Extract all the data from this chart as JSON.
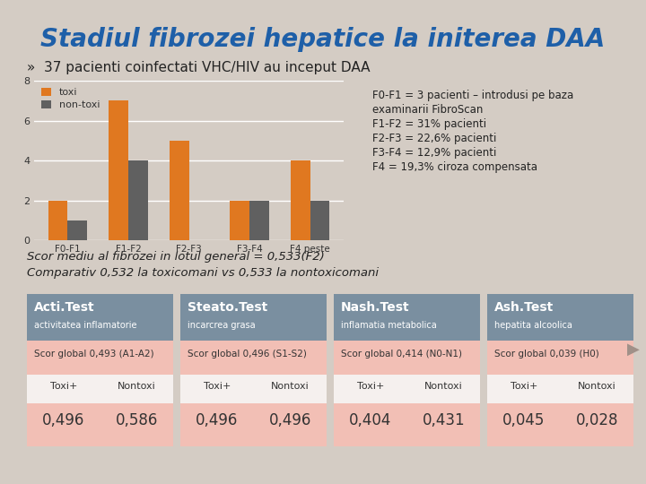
{
  "title": "Stadiul fibrozei hepatice la initerea DAA",
  "subtitle": "»  37 pacienti coinfectati VHC/HIV au inceput DAA",
  "bg_color": "#d4ccc4",
  "title_color": "#1e5fa8",
  "categories": [
    "F0-F1",
    "F1-F2",
    "F2-F3",
    "F3-F4",
    "F4 peste"
  ],
  "toxi": [
    2,
    7,
    5,
    2,
    4
  ],
  "non_toxi": [
    1,
    4,
    0,
    2,
    2
  ],
  "toxi_color": "#e07820",
  "non_toxi_color": "#606060",
  "ylim": [
    0,
    8
  ],
  "yticks": [
    0,
    2,
    4,
    6,
    8
  ],
  "legend_toxi": "toxi",
  "legend_non_toxi": "non-toxi",
  "annotation_lines": [
    "F0-F1 = 3 pacienti – introdusi pe baza",
    "examinarii FibroScan",
    "F1-F2 = 31% pacienti",
    "F2-F3 = 22,6% pacienti",
    "F3-F4 = 12,9% pacienti",
    "F4 = 19,3% ciroza compensata"
  ],
  "scor_line1": "Scor mediu al fibrozei in lotul general = 0,533(F2)",
  "scor_line2": "Comparativ 0,532 la toxicomani vs 0,533 la nontoxicomani",
  "table_header_color": "#7a8fa0",
  "table_row1_color": "#f2bfb5",
  "table_row2_color": "#f5f0ee",
  "table_row3_color": "#f2bfb5",
  "tests": [
    {
      "name": "Acti.Test",
      "sub": "activitatea inflamatorie",
      "scor": "Scor global 0,493 (A1-A2)",
      "toxi_val": "0,496",
      "nontoxi_val": "0,586"
    },
    {
      "name": "Steato.Test",
      "sub": "incarcrea grasa",
      "scor": "Scor global 0,496 (S1-S2)",
      "toxi_val": "0,496",
      "nontoxi_val": "0,496"
    },
    {
      "name": "Nash.Test",
      "sub": "inflamatia metabolica",
      "scor": "Scor global 0,414 (N0-N1)",
      "toxi_val": "0,404",
      "nontoxi_val": "0,431"
    },
    {
      "name": "Ash.Test",
      "sub": "hepatita alcoolica",
      "scor": "Scor global 0,039 (H0)",
      "toxi_val": "0,045",
      "nontoxi_val": "0,028"
    }
  ]
}
